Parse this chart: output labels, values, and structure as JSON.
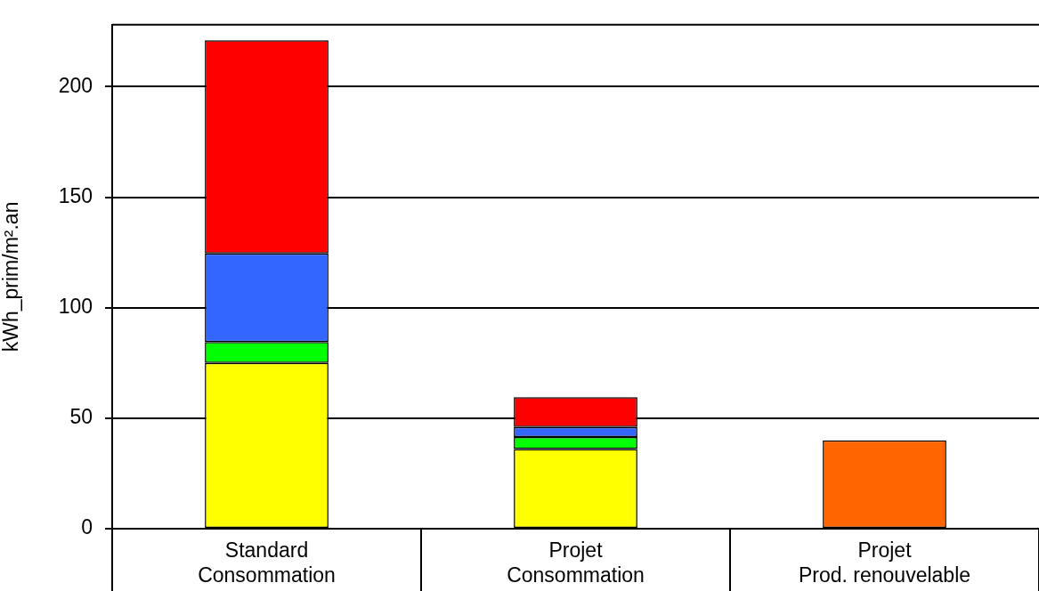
{
  "chart_data": {
    "type": "bar",
    "ylabel": "kWh_prim/m².an",
    "categories": [
      "Standard\nConsommation",
      "Projet\nConsommation",
      "Projet\nProd. renouvelable"
    ],
    "stacked": true,
    "series": [
      {
        "color": "#ffff00",
        "values": [
          75,
          36,
          null
        ]
      },
      {
        "color": "#00ff00",
        "values": [
          9.5,
          5.5,
          null
        ]
      },
      {
        "color": "#3366ff",
        "values": [
          40,
          4.5,
          null
        ]
      },
      {
        "color": "#ff0000",
        "values": [
          96.5,
          13.5,
          null
        ]
      },
      {
        "color": "#ff6600",
        "values": [
          null,
          null,
          40
        ]
      }
    ],
    "ylim": [
      0,
      228
    ],
    "yticks": [
      0,
      50,
      100,
      150,
      200
    ],
    "grid": "y",
    "legend": false
  }
}
